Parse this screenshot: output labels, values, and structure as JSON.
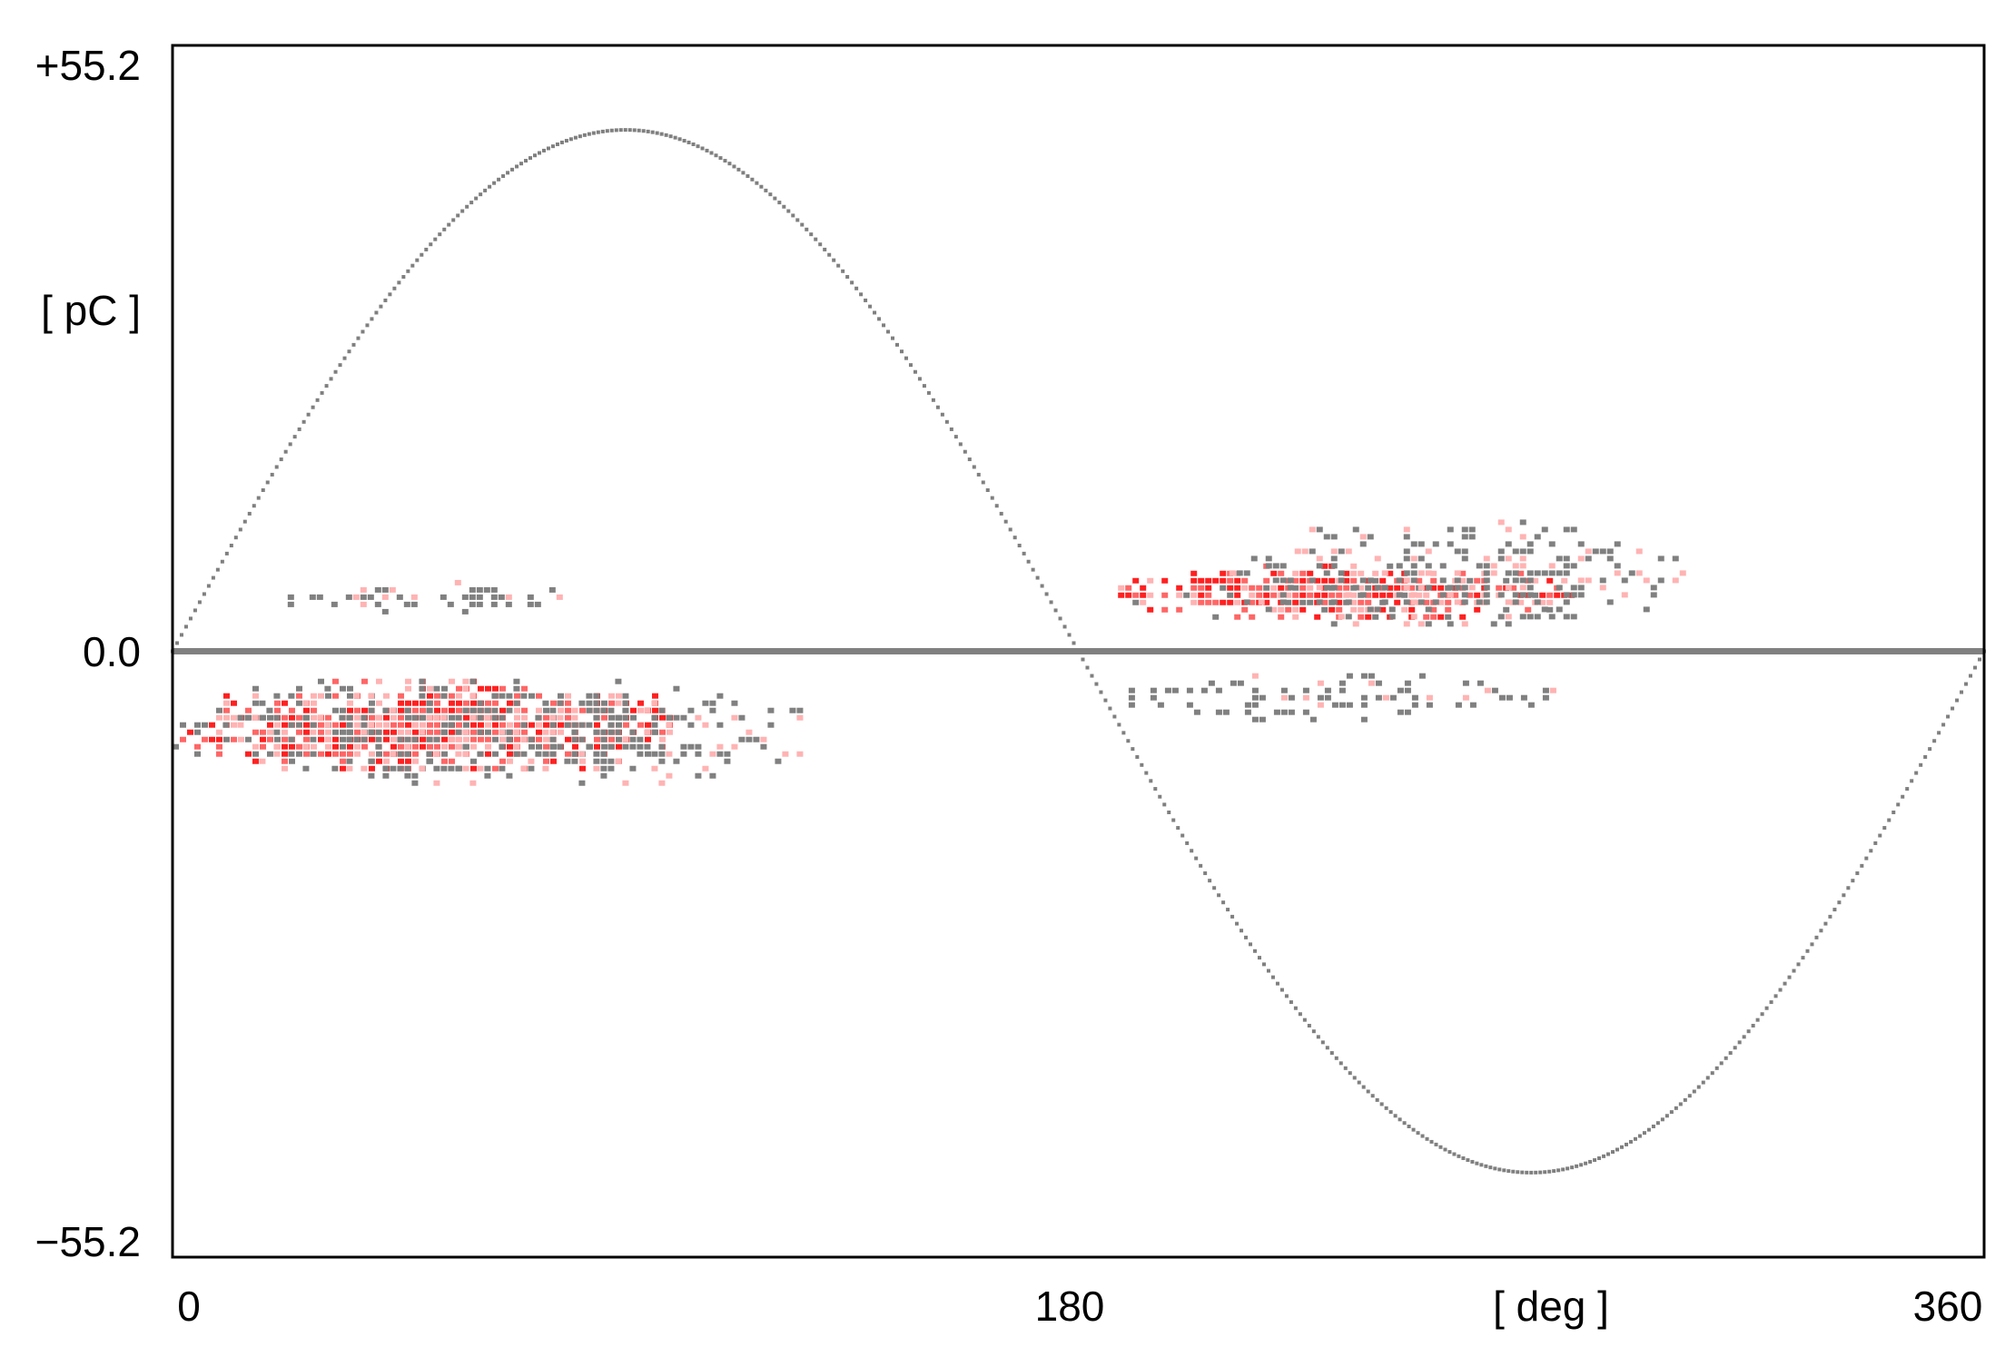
{
  "chart_data": {
    "type": "scatter",
    "title": "",
    "xlabel": "[ deg ]",
    "ylabel": "[ pC ]",
    "xlim": [
      0,
      360
    ],
    "ylim": [
      -55.2,
      55.2
    ],
    "x_ticks": [
      "0",
      "180",
      "360"
    ],
    "y_ticks": [
      "+55.2",
      "0.0",
      "−55.2"
    ],
    "grid": false,
    "legend": "none",
    "reference_sine": {
      "amplitude": 47.5,
      "period_deg": 360
    },
    "zero_line": 0.0,
    "clusters": [
      {
        "x_range": [
          0,
          100
        ],
        "y_range": [
          -11,
          -2.5
        ],
        "density": 0.85
      },
      {
        "x_range": [
          10,
          125
        ],
        "y_range": [
          -12,
          -2.5
        ],
        "density": 0.35
      },
      {
        "x_range": [
          20,
          78
        ],
        "y_range": [
          3.5,
          6.5
        ],
        "density": 0.25
      },
      {
        "x_range": [
          185,
          280
        ],
        "y_range": [
          3,
          8
        ],
        "density": 0.85
      },
      {
        "x_range": [
          210,
          300
        ],
        "y_range": [
          2.5,
          12
        ],
        "density": 0.35
      },
      {
        "x_range": [
          190,
          275
        ],
        "y_range": [
          -6,
          -2
        ],
        "density": 0.3
      }
    ],
    "colors": {
      "frame": "#000000",
      "sine": "#7f7f7f",
      "zero_line": "#808080",
      "noise": "#808080",
      "density_low": "#ffb3b3",
      "density_mid": "#ff6666",
      "density_high": "#ff2020"
    }
  }
}
